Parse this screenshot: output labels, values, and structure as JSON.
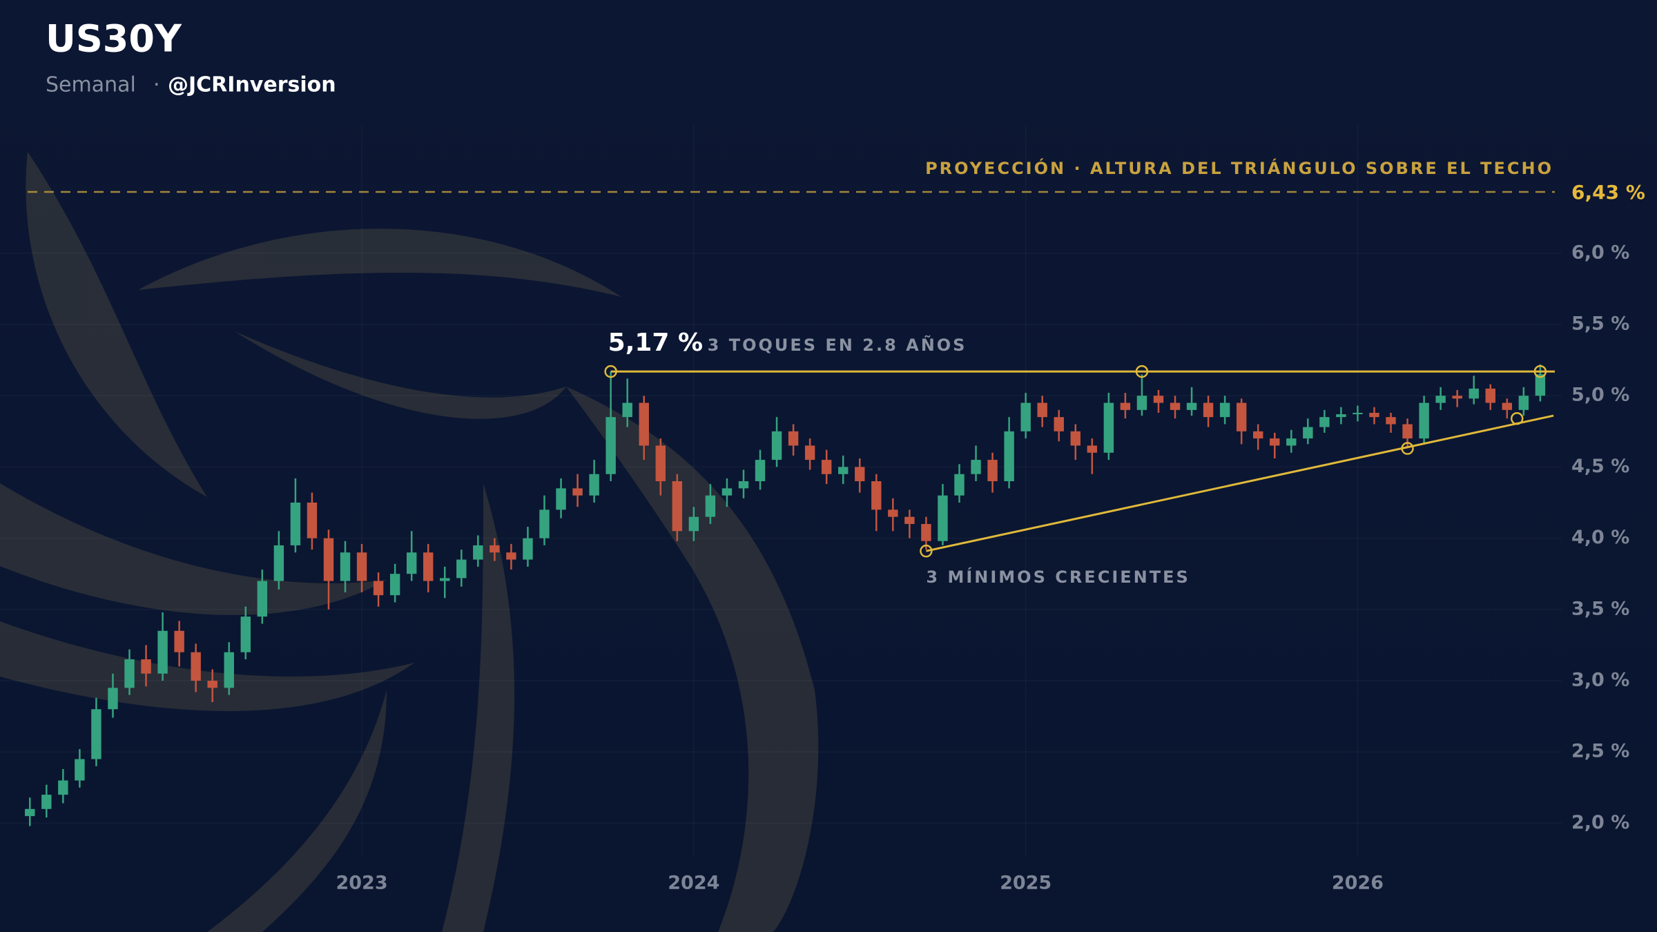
{
  "chart_data": {
    "type": "candlestick",
    "title": "US30Y",
    "subtitle": "Semanal",
    "subtitle_separator": "·",
    "author": "@JCRInversion",
    "up_color": "#35a37f",
    "down_color": "#c4553f",
    "grid": true,
    "xlim": [
      2021.91,
      2026.7
    ],
    "xticks": [
      2023,
      2024,
      2025,
      2026
    ],
    "ylim": [
      1.6,
      6.9
    ],
    "yticks": [
      {
        "value": 2.0,
        "label": "2,0 %"
      },
      {
        "value": 2.5,
        "label": "2,5 %"
      },
      {
        "value": 3.0,
        "label": "3,0 %"
      },
      {
        "value": 3.5,
        "label": "3,5 %"
      },
      {
        "value": 4.0,
        "label": "4,0 %"
      },
      {
        "value": 4.5,
        "label": "4,5 %"
      },
      {
        "value": 5.0,
        "label": "5,0 %"
      },
      {
        "value": 5.5,
        "label": "5,5 %"
      },
      {
        "value": 6.0,
        "label": "6,0 %"
      }
    ],
    "x": [
      2022.0,
      2022.05,
      2022.1,
      2022.15,
      2022.2,
      2022.25,
      2022.3,
      2022.35,
      2022.4,
      2022.45,
      2022.5,
      2022.55,
      2022.6,
      2022.65,
      2022.7,
      2022.75,
      2022.8,
      2022.85,
      2022.9,
      2022.95,
      2023.0,
      2023.05,
      2023.1,
      2023.15,
      2023.2,
      2023.25,
      2023.3,
      2023.35,
      2023.4,
      2023.45,
      2023.5,
      2023.55,
      2023.6,
      2023.65,
      2023.7,
      2023.75,
      2023.8,
      2023.85,
      2023.9,
      2023.95,
      2024.0,
      2024.05,
      2024.1,
      2024.15,
      2024.2,
      2024.25,
      2024.3,
      2024.35,
      2024.4,
      2024.45,
      2024.5,
      2024.55,
      2024.6,
      2024.65,
      2024.7,
      2024.75,
      2024.8,
      2024.85,
      2024.9,
      2024.95,
      2025.0,
      2025.05,
      2025.1,
      2025.15,
      2025.2,
      2025.25,
      2025.3,
      2025.35,
      2025.4,
      2025.45,
      2025.5,
      2025.55,
      2025.6,
      2025.65,
      2025.7,
      2025.75,
      2025.8,
      2025.85,
      2025.9,
      2025.95,
      2026.0,
      2026.05,
      2026.1,
      2026.15,
      2026.2,
      2026.25,
      2026.3,
      2026.35,
      2026.4,
      2026.45,
      2026.5,
      2026.55
    ],
    "open": [
      2.05,
      2.1,
      2.2,
      2.3,
      2.45,
      2.8,
      2.95,
      3.15,
      3.05,
      3.35,
      3.2,
      3.0,
      2.95,
      3.2,
      3.45,
      3.7,
      3.95,
      4.25,
      4.0,
      3.7,
      3.9,
      3.7,
      3.6,
      3.75,
      3.9,
      3.7,
      3.72,
      3.85,
      3.95,
      3.9,
      3.85,
      4.0,
      4.2,
      4.35,
      4.3,
      4.45,
      4.85,
      4.95,
      4.65,
      4.4,
      4.05,
      4.15,
      4.3,
      4.35,
      4.4,
      4.55,
      4.75,
      4.65,
      4.55,
      4.45,
      4.5,
      4.4,
      4.2,
      4.15,
      4.1,
      3.98,
      4.3,
      4.45,
      4.55,
      4.4,
      4.75,
      4.95,
      4.85,
      4.75,
      4.65,
      4.6,
      4.95,
      4.9,
      5.0,
      4.95,
      4.9,
      4.95,
      4.85,
      4.95,
      4.75,
      4.7,
      4.65,
      4.7,
      4.78,
      4.85,
      4.87,
      4.88,
      4.85,
      4.8,
      4.7,
      4.95,
      5.0,
      4.98,
      5.05,
      4.95,
      4.9,
      5.0
    ],
    "high": [
      2.18,
      2.27,
      2.38,
      2.52,
      2.88,
      3.05,
      3.22,
      3.25,
      3.48,
      3.42,
      3.26,
      3.08,
      3.27,
      3.52,
      3.78,
      4.05,
      4.42,
      4.32,
      4.06,
      3.98,
      3.96,
      3.76,
      3.82,
      4.05,
      3.96,
      3.8,
      3.92,
      4.02,
      4.0,
      3.96,
      4.08,
      4.3,
      4.42,
      4.45,
      4.55,
      5.17,
      5.12,
      5.0,
      4.7,
      4.45,
      4.22,
      4.38,
      4.42,
      4.48,
      4.62,
      4.85,
      4.8,
      4.7,
      4.62,
      4.58,
      4.56,
      4.45,
      4.28,
      4.2,
      4.15,
      4.38,
      4.52,
      4.65,
      4.6,
      4.85,
      5.02,
      5.0,
      4.9,
      4.8,
      4.7,
      5.02,
      5.02,
      5.15,
      5.04,
      5.0,
      5.06,
      5.0,
      5.0,
      4.98,
      4.8,
      4.74,
      4.76,
      4.84,
      4.9,
      4.92,
      4.93,
      4.92,
      4.88,
      4.84,
      5.0,
      5.06,
      5.04,
      5.14,
      5.08,
      4.98,
      5.06,
      5.22
    ],
    "low": [
      1.98,
      2.04,
      2.14,
      2.25,
      2.4,
      2.74,
      2.9,
      2.96,
      3.0,
      3.1,
      2.92,
      2.85,
      2.9,
      3.15,
      3.4,
      3.64,
      3.9,
      3.92,
      3.5,
      3.62,
      3.62,
      3.52,
      3.55,
      3.7,
      3.62,
      3.58,
      3.66,
      3.8,
      3.84,
      3.78,
      3.8,
      3.95,
      4.14,
      4.22,
      4.25,
      4.4,
      4.78,
      4.55,
      4.3,
      3.98,
      3.98,
      4.1,
      4.22,
      4.28,
      4.34,
      4.5,
      4.58,
      4.48,
      4.38,
      4.38,
      4.32,
      4.05,
      4.05,
      4.0,
      3.92,
      3.95,
      4.25,
      4.4,
      4.32,
      4.35,
      4.7,
      4.78,
      4.68,
      4.55,
      4.45,
      4.55,
      4.84,
      4.86,
      4.88,
      4.84,
      4.86,
      4.78,
      4.8,
      4.66,
      4.62,
      4.56,
      4.6,
      4.66,
      4.74,
      4.8,
      4.82,
      4.8,
      4.74,
      4.63,
      4.66,
      4.9,
      4.92,
      4.94,
      4.9,
      4.84,
      4.86,
      4.96
    ],
    "close": [
      2.1,
      2.2,
      2.3,
      2.45,
      2.8,
      2.95,
      3.15,
      3.05,
      3.35,
      3.2,
      3.0,
      2.95,
      3.2,
      3.45,
      3.7,
      3.95,
      4.25,
      4.0,
      3.7,
      3.9,
      3.7,
      3.6,
      3.75,
      3.9,
      3.7,
      3.72,
      3.85,
      3.95,
      3.9,
      3.85,
      4.0,
      4.2,
      4.35,
      4.3,
      4.45,
      4.85,
      4.95,
      4.65,
      4.4,
      4.05,
      4.15,
      4.3,
      4.35,
      4.4,
      4.55,
      4.75,
      4.65,
      4.55,
      4.45,
      4.5,
      4.4,
      4.2,
      4.15,
      4.1,
      3.98,
      4.3,
      4.45,
      4.55,
      4.4,
      4.75,
      4.95,
      4.85,
      4.75,
      4.65,
      4.6,
      4.95,
      4.9,
      5.0,
      4.95,
      4.9,
      4.95,
      4.85,
      4.95,
      4.75,
      4.7,
      4.65,
      4.7,
      4.78,
      4.85,
      4.87,
      4.88,
      4.85,
      4.8,
      4.7,
      4.95,
      5.0,
      4.98,
      5.05,
      4.95,
      4.9,
      5.0,
      5.15
    ],
    "resistance": {
      "value": 5.17,
      "label": "5,17 %",
      "note": "3 TOQUES EN 2.8 AÑOS",
      "color": "#e0b93a",
      "x": [
        2023.75,
        2026.7
      ],
      "touches_x": [
        2023.75,
        2025.35,
        2026.55
      ]
    },
    "support": {
      "label": "3 MÍNIMOS CRECIENTES",
      "color": "#e0b93a",
      "x": [
        2024.7,
        2026.59
      ],
      "y": [
        3.91,
        4.86
      ],
      "touches_x": [
        2024.7,
        2026.15,
        2026.48
      ],
      "touches_y": [
        3.91,
        4.63,
        4.84
      ]
    },
    "projection": {
      "value": 6.43,
      "label": "6,43 %",
      "text": "PROYECCIÓN · ALTURA DEL TRIÁNGULO SOBRE EL TECHO",
      "color": "#c9a23f"
    }
  }
}
